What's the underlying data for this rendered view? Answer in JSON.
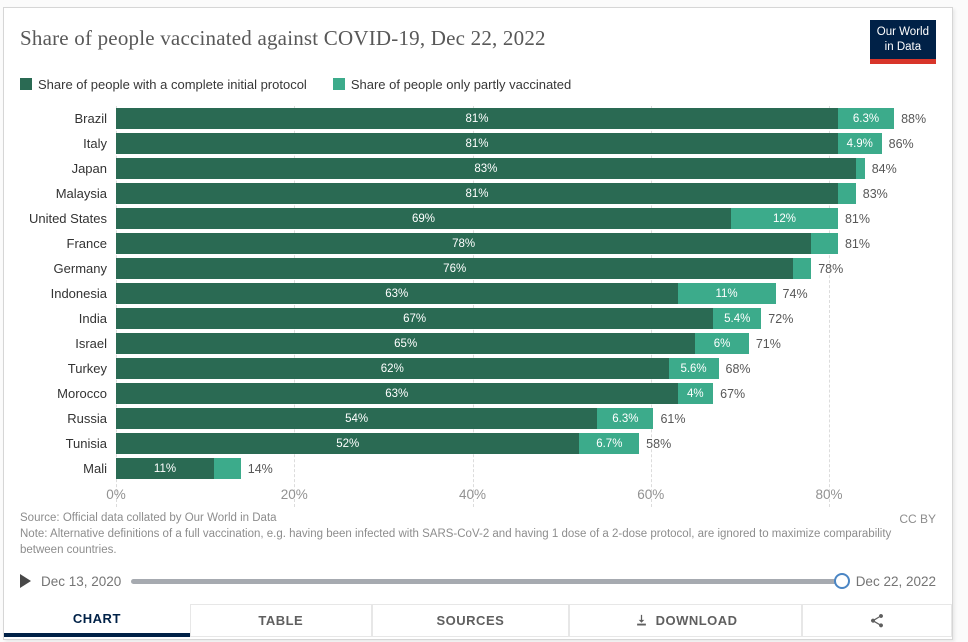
{
  "header": {
    "title": "Share of people vaccinated against COVID-19, Dec 22, 2022",
    "logo": {
      "line1": "Our World",
      "line2": "in Data"
    }
  },
  "legend": [
    {
      "label": "Share of people with a complete initial protocol",
      "color": "#2a6a53"
    },
    {
      "label": "Share of people only partly vaccinated",
      "color": "#3cab8b"
    }
  ],
  "chart_data": {
    "type": "bar",
    "orientation": "horizontal",
    "stacked": true,
    "title": "Share of people vaccinated against COVID-19, Dec 22, 2022",
    "xlabel": "",
    "ylabel": "",
    "xlim": [
      0,
      92
    ],
    "grid": "dashed-vertical",
    "x_ticks": [
      {
        "value": 0,
        "label": "0%"
      },
      {
        "value": 20,
        "label": "20%"
      },
      {
        "value": 40,
        "label": "40%"
      },
      {
        "value": 60,
        "label": "60%"
      },
      {
        "value": 80,
        "label": "80%"
      }
    ],
    "series": [
      {
        "name": "Share of people with a complete initial protocol",
        "color": "#2a6a53"
      },
      {
        "name": "Share of people only partly vaccinated",
        "color": "#3cab8b"
      }
    ],
    "rows": [
      {
        "country": "Brazil",
        "complete": 81,
        "complete_label": "81%",
        "partly": 6.3,
        "partly_label": "6.3%",
        "total": 88,
        "total_label": "88%"
      },
      {
        "country": "Italy",
        "complete": 81,
        "complete_label": "81%",
        "partly": 4.9,
        "partly_label": "4.9%",
        "total": 86,
        "total_label": "86%"
      },
      {
        "country": "Japan",
        "complete": 83,
        "complete_label": "83%",
        "partly": 1.0,
        "partly_label": "",
        "total": 84,
        "total_label": "84%"
      },
      {
        "country": "Malaysia",
        "complete": 81,
        "complete_label": "81%",
        "partly": 2.0,
        "partly_label": "",
        "total": 83,
        "total_label": "83%"
      },
      {
        "country": "United States",
        "complete": 69,
        "complete_label": "69%",
        "partly": 12,
        "partly_label": "12%",
        "total": 81,
        "total_label": "81%"
      },
      {
        "country": "France",
        "complete": 78,
        "complete_label": "78%",
        "partly": 3.0,
        "partly_label": "",
        "total": 81,
        "total_label": "81%"
      },
      {
        "country": "Germany",
        "complete": 76,
        "complete_label": "76%",
        "partly": 2.0,
        "partly_label": "",
        "total": 78,
        "total_label": "78%"
      },
      {
        "country": "Indonesia",
        "complete": 63,
        "complete_label": "63%",
        "partly": 11,
        "partly_label": "11%",
        "total": 74,
        "total_label": "74%"
      },
      {
        "country": "India",
        "complete": 67,
        "complete_label": "67%",
        "partly": 5.4,
        "partly_label": "5.4%",
        "total": 72,
        "total_label": "72%"
      },
      {
        "country": "Israel",
        "complete": 65,
        "complete_label": "65%",
        "partly": 6.0,
        "partly_label": "6%",
        "total": 71,
        "total_label": "71%"
      },
      {
        "country": "Turkey",
        "complete": 62,
        "complete_label": "62%",
        "partly": 5.6,
        "partly_label": "5.6%",
        "total": 68,
        "total_label": "68%"
      },
      {
        "country": "Morocco",
        "complete": 63,
        "complete_label": "63%",
        "partly": 4.0,
        "partly_label": "4%",
        "total": 67,
        "total_label": "67%"
      },
      {
        "country": "Russia",
        "complete": 54,
        "complete_label": "54%",
        "partly": 6.3,
        "partly_label": "6.3%",
        "total": 61,
        "total_label": "61%"
      },
      {
        "country": "Tunisia",
        "complete": 52,
        "complete_label": "52%",
        "partly": 6.7,
        "partly_label": "6.7%",
        "total": 58,
        "total_label": "58%"
      },
      {
        "country": "Mali",
        "complete": 11,
        "complete_label": "11%",
        "partly": 3.0,
        "partly_label": "",
        "total": 14,
        "total_label": "14%"
      }
    ]
  },
  "footer": {
    "source": "Source: Official data collated by Our World in Data",
    "note": "Note: Alternative definitions of a full vaccination, e.g. having been infected with SARS-CoV-2 and having 1 dose of a 2-dose protocol, are ignored to maximize comparability between countries.",
    "license": "CC BY"
  },
  "timeline": {
    "start_label": "Dec 13, 2020",
    "end_label": "Dec 22, 2022"
  },
  "tabs": [
    {
      "label": "CHART",
      "icon": "",
      "active": true
    },
    {
      "label": "TABLE",
      "icon": "",
      "active": false
    },
    {
      "label": "SOURCES",
      "icon": "",
      "active": false
    },
    {
      "label": "DOWNLOAD",
      "icon": "download-icon",
      "active": false
    },
    {
      "label": "",
      "icon": "share-icon",
      "active": false
    }
  ]
}
